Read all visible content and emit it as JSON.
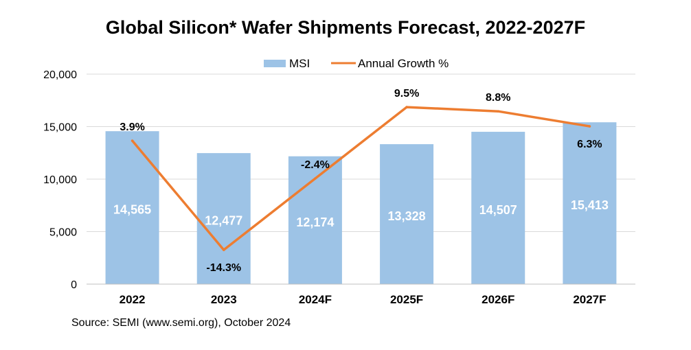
{
  "chart_data": {
    "type": "bar+line",
    "title": "Global Silicon* Wafer Shipments Forecast, 2022-2027F",
    "categories": [
      "2022",
      "2023",
      "2024F",
      "2025F",
      "2026F",
      "2027F"
    ],
    "series": [
      {
        "name": "MSI",
        "type": "bar",
        "axis": "left",
        "values": [
          14565,
          12477,
          12174,
          13328,
          14507,
          15413
        ],
        "labels": [
          "14,565",
          "12,477",
          "12,174",
          "13,328",
          "14,507",
          "15,413"
        ]
      },
      {
        "name": "Annual Growth %",
        "type": "line",
        "axis": "secondary (hidden)",
        "values": [
          3.9,
          -14.3,
          -2.4,
          9.5,
          8.8,
          6.3
        ],
        "labels": [
          "3.9%",
          "-14.3%",
          "-2.4%",
          "9.5%",
          "8.8%",
          "6.3%"
        ]
      }
    ],
    "ylim": [
      0,
      20000
    ],
    "y2lim": [
      -20,
      15
    ],
    "yticks": [
      0,
      5000,
      10000,
      15000,
      20000
    ],
    "ytick_labels": [
      "0",
      "5,000",
      "10,000",
      "15,000",
      "20,000"
    ],
    "grid": true,
    "legend": "top-center",
    "colors": {
      "bar": "#9dc3e6",
      "line": "#ed7d31",
      "grid": "#d9d9d9"
    },
    "source": "Source: SEMI (www.semi.org), October 2024"
  }
}
